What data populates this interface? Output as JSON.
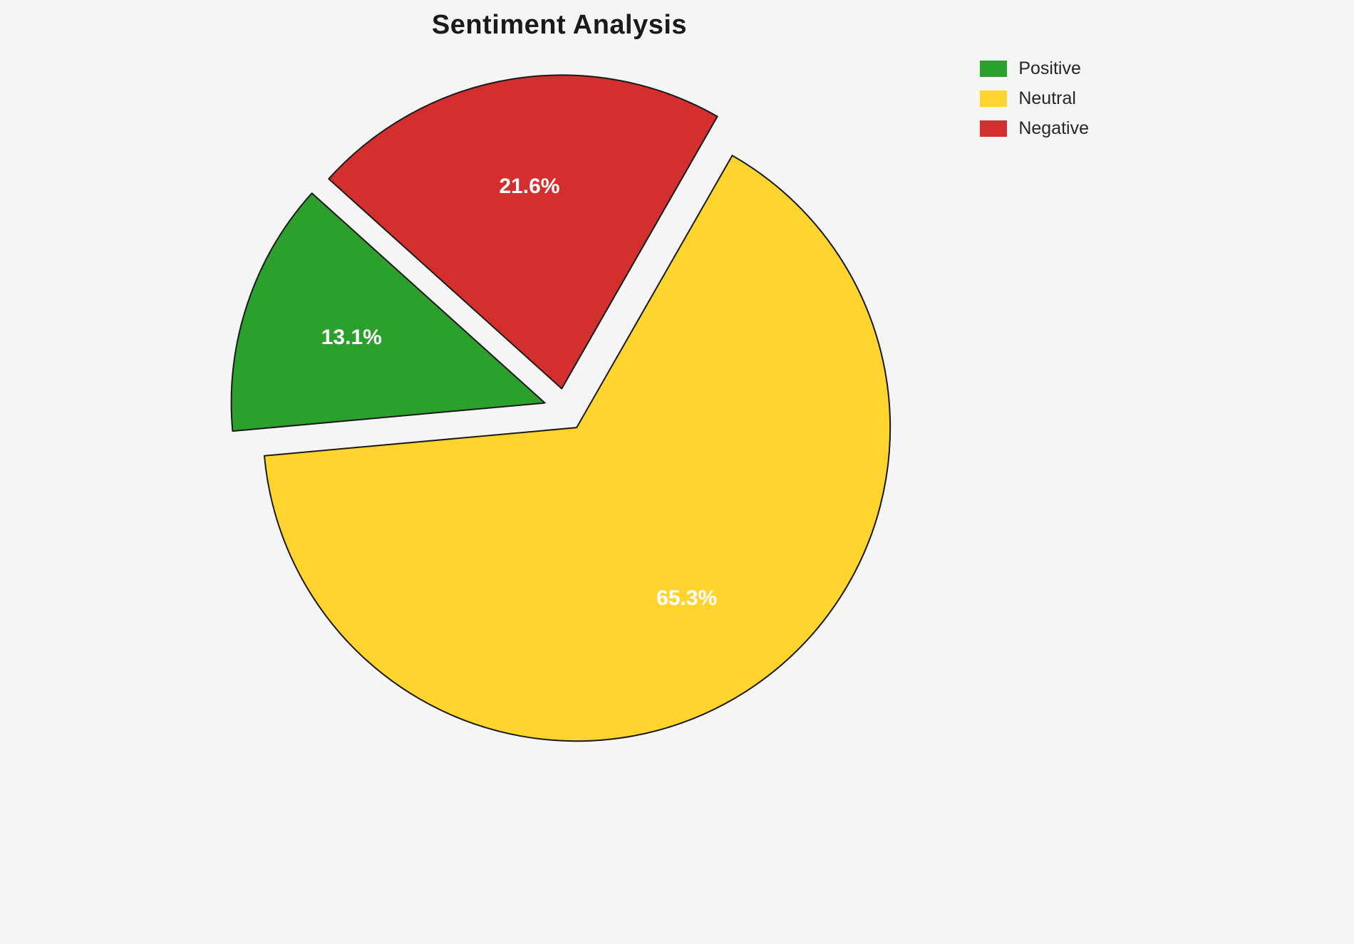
{
  "chart_data": {
    "type": "pie",
    "title": "Sentiment Analysis",
    "labels": [
      "Positive",
      "Neutral",
      "Negative"
    ],
    "values": [
      13.1,
      65.3,
      21.6
    ],
    "value_labels": [
      "13.1%",
      "65.3%",
      "21.6%"
    ],
    "colors": [
      "#2ca02c",
      "#ffd42e",
      "#d32f2f"
    ],
    "start_angle": 138,
    "explode": 0.068,
    "legend_position": "upper right",
    "background": "#f5f5f5",
    "slice_label_color": "#ffffff",
    "edge_color": "#1a1a1a"
  }
}
